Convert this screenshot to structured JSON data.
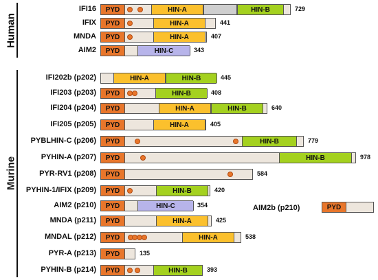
{
  "groups": {
    "human": "Human",
    "murine": "Murine"
  },
  "colors": {
    "PYD": "#e8762b",
    "HIN-A": "#fbc02d",
    "HIN-B": "#a4d11f",
    "HIN-C": "#b7b4ea",
    "gray": "#cfcfcf",
    "bg": "#ede6dd"
  },
  "scale_max_length": 978,
  "proteins": [
    {
      "name": "IFI16",
      "length": 729,
      "length_label": "729",
      "domains": [
        {
          "type": "PYD",
          "label": "PYD",
          "start": 0,
          "end": 92
        },
        {
          "type": "HIN-A",
          "label": "HIN-A",
          "start": 192,
          "end": 392
        },
        {
          "type": "gray",
          "label": "",
          "start": 392,
          "end": 520
        },
        {
          "type": "HIN-B",
          "label": "HIN-B",
          "start": 520,
          "end": 700
        }
      ],
      "dots": [
        110,
        150
      ]
    },
    {
      "name": "IFIX",
      "length": 441,
      "length_label": "441",
      "domains": [
        {
          "type": "PYD",
          "label": "PYD",
          "start": 0,
          "end": 92
        },
        {
          "type": "HIN-A",
          "label": "HIN-A",
          "start": 200,
          "end": 400
        }
      ],
      "dots": [
        110
      ]
    },
    {
      "name": "MNDA",
      "length": 407,
      "length_label": "407",
      "domains": [
        {
          "type": "PYD",
          "label": "PYD",
          "start": 0,
          "end": 92
        },
        {
          "type": "HIN-A",
          "label": "HIN-A",
          "start": 200,
          "end": 400
        }
      ],
      "dots": [
        110
      ]
    },
    {
      "name": "AIM2",
      "length": 343,
      "length_label": "343",
      "domains": [
        {
          "type": "PYD",
          "label": "PYD",
          "start": 0,
          "end": 92
        },
        {
          "type": "HIN-C",
          "label": "HIN-C",
          "start": 140,
          "end": 343
        }
      ],
      "dots": []
    },
    {
      "name": "IFI202b (p202)",
      "length": 445,
      "length_label": "445",
      "domains": [
        {
          "type": "HIN-A",
          "label": "HIN-A",
          "start": 48,
          "end": 248
        },
        {
          "type": "HIN-B",
          "label": "HIN-B",
          "start": 248,
          "end": 445
        }
      ],
      "dots": []
    },
    {
      "name": "IFI203 (p203)",
      "length": 408,
      "length_label": "408",
      "domains": [
        {
          "type": "PYD",
          "label": "PYD",
          "start": 0,
          "end": 92
        },
        {
          "type": "HIN-B",
          "label": "HIN-B",
          "start": 208,
          "end": 408
        }
      ],
      "dots": [
        110,
        130
      ]
    },
    {
      "name": "IFI204 (p204)",
      "length": 640,
      "length_label": "640",
      "domains": [
        {
          "type": "PYD",
          "label": "PYD",
          "start": 0,
          "end": 92
        },
        {
          "type": "HIN-A",
          "label": "HIN-A",
          "start": 220,
          "end": 420
        },
        {
          "type": "HIN-B",
          "label": "HIN-B",
          "start": 420,
          "end": 620
        }
      ],
      "dots": []
    },
    {
      "name": "IFI205 (p205)",
      "length": 405,
      "length_label": "405",
      "domains": [
        {
          "type": "PYD",
          "label": "PYD",
          "start": 0,
          "end": 92
        },
        {
          "type": "HIN-A",
          "label": "HIN-A",
          "start": 200,
          "end": 400
        }
      ],
      "dots": []
    },
    {
      "name": "PYBLHIN-C (p206)",
      "length": 779,
      "length_label": "779",
      "domains": [
        {
          "type": "PYD",
          "label": "PYD",
          "start": 0,
          "end": 92
        },
        {
          "type": "HIN-B",
          "label": "HIN-B",
          "start": 540,
          "end": 750
        }
      ],
      "dots": [
        140,
        515
      ]
    },
    {
      "name": "PYHIN-A (p207)",
      "length": 978,
      "length_label": "978",
      "domains": [
        {
          "type": "PYD",
          "label": "PYD",
          "start": 0,
          "end": 92
        },
        {
          "type": "HIN-B",
          "label": "HIN-B",
          "start": 680,
          "end": 960
        }
      ],
      "dots": [
        160
      ]
    },
    {
      "name": "PYR-RV1 (p208)",
      "length": 584,
      "length_label": "584",
      "domains": [
        {
          "type": "PYD",
          "label": "PYD",
          "start": 0,
          "end": 92
        }
      ],
      "dots": [
        495
      ]
    },
    {
      "name": "PYHIN-1/IFIX (p209)",
      "length": 420,
      "length_label": "420",
      "domains": [
        {
          "type": "PYD",
          "label": "PYD",
          "start": 0,
          "end": 92
        },
        {
          "type": "HIN-B",
          "label": "HIN-B",
          "start": 210,
          "end": 410
        }
      ],
      "dots": [
        110
      ]
    },
    {
      "name": "AIM2 (p210)",
      "length": 354,
      "length_label": "354",
      "domains": [
        {
          "type": "PYD",
          "label": "PYD",
          "start": 0,
          "end": 92
        },
        {
          "type": "HIN-C",
          "label": "HIN-C",
          "start": 140,
          "end": 354
        }
      ],
      "dots": []
    },
    {
      "name": "MNDA (p211)",
      "length": 425,
      "length_label": "425",
      "domains": [
        {
          "type": "PYD",
          "label": "PYD",
          "start": 0,
          "end": 92
        },
        {
          "type": "HIN-A",
          "label": "HIN-A",
          "start": 210,
          "end": 410
        }
      ],
      "dots": []
    },
    {
      "name": "MNDAL (p212)",
      "length": 538,
      "length_label": "538",
      "domains": [
        {
          "type": "PYD",
          "label": "PYD",
          "start": 0,
          "end": 92
        },
        {
          "type": "HIN-A",
          "label": "HIN-A",
          "start": 310,
          "end": 510
        }
      ],
      "dots": [
        112,
        130,
        148,
        166
      ]
    },
    {
      "name": "PYR-A (p213)",
      "length": 135,
      "length_label": "135",
      "domains": [
        {
          "type": "PYD",
          "label": "PYD",
          "start": 0,
          "end": 92
        }
      ],
      "dots": []
    },
    {
      "name": "PYHIN-B (p214)",
      "length": 393,
      "length_label": "393",
      "domains": [
        {
          "type": "PYD",
          "label": "PYD",
          "start": 0,
          "end": 92
        },
        {
          "type": "HIN-B",
          "label": "HIN-B",
          "start": 200,
          "end": 390
        }
      ],
      "dots": [
        110,
        140
      ]
    }
  ],
  "aim2b": {
    "name": "AIM2b (p210)",
    "length": 200,
    "domains": [
      {
        "type": "PYD",
        "label": "PYD",
        "start": 0,
        "end": 92
      }
    ]
  }
}
